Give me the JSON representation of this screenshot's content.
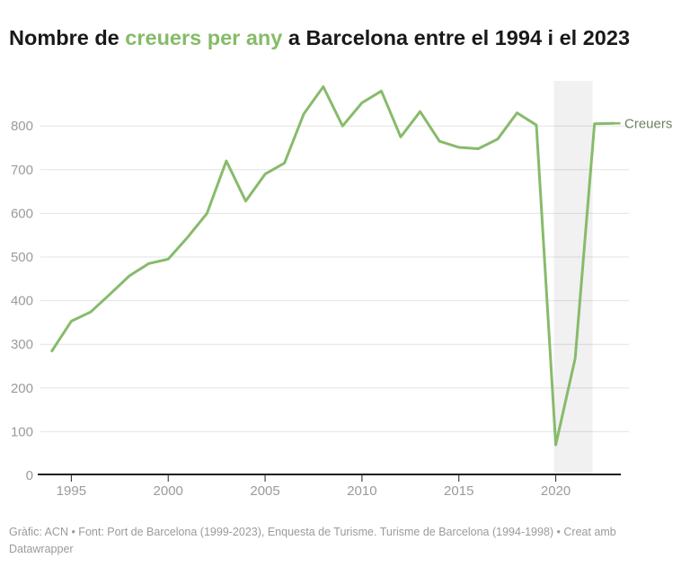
{
  "title": {
    "prefix": "Nombre de ",
    "highlight": "creuers per any",
    "suffix": " a Barcelona entre el 1994 i el 2023"
  },
  "footer": {
    "credit": "Gràfic: ACN • Font: Port de Barcelona (1999-2023), Enquesta de Turisme. Turisme de Barcelona (1994-1998) • Creat amb Datawrapper"
  },
  "colors": {
    "line": "#87bb6b",
    "title_highlight": "#86bb68",
    "grid": "#e3e3e3",
    "axis": "#202020",
    "tick_label": "#9b9b9b",
    "footer_text": "#9b9b9b",
    "series_label": "#6f8160",
    "highlight_band": "rgba(0,0,0,0.055)",
    "background": "#ffffff"
  },
  "chart_data": {
    "type": "line",
    "title": "Nombre de creuers per any a Barcelona entre el 1994 i el 2023",
    "x": [
      1994,
      1995,
      1996,
      1997,
      1998,
      1999,
      2000,
      2001,
      2002,
      2003,
      2004,
      2005,
      2006,
      2007,
      2008,
      2009,
      2010,
      2011,
      2012,
      2013,
      2014,
      2015,
      2016,
      2017,
      2018,
      2019,
      2020,
      2021,
      2022,
      2023
    ],
    "series": [
      {
        "name": "Creuers",
        "values": [
          285,
          353,
          374,
          415,
          457,
          485,
          495,
          545,
          600,
          720,
          628,
          690,
          715,
          828,
          890,
          800,
          853,
          880,
          775,
          833,
          765,
          751,
          748,
          770,
          830,
          802,
          70,
          268,
          805,
          806
        ]
      }
    ],
    "xlabel": "",
    "ylabel": "",
    "xticks": [
      1995,
      2000,
      2005,
      2010,
      2015,
      2020
    ],
    "yticks": [
      0,
      100,
      200,
      300,
      400,
      500,
      600,
      700,
      800
    ],
    "ylim": [
      0,
      905
    ],
    "xlim": [
      1993.4,
      2023.6
    ],
    "grid": "horizontal",
    "legend_position": "right-of-last-point",
    "series_label": "Creuers",
    "highlight_span": {
      "from": 2019.9,
      "to": 2021.9
    }
  }
}
